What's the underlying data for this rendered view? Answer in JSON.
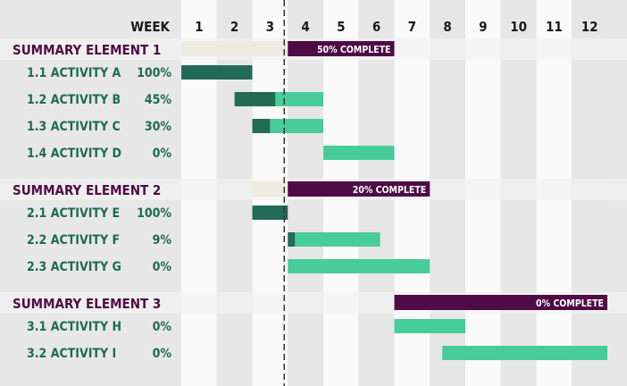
{
  "chart_data": {
    "type": "gantt",
    "header_label": "WEEK",
    "weeks": [
      "1",
      "2",
      "3",
      "4",
      "5",
      "6",
      "7",
      "8",
      "9",
      "10",
      "11",
      "12"
    ],
    "current_week": 3,
    "groups": [
      {
        "label": "SUMMARY ELEMENT 1",
        "elapsed": [
          1,
          3
        ],
        "remaining": [
          4,
          6
        ],
        "complete_label": "50% COMPLETE",
        "activities": [
          {
            "label": "1.1 ACTIVITY A",
            "percent": "100%",
            "start": 1,
            "end": 2,
            "done": 2
          },
          {
            "label": "1.2 ACTIVITY B",
            "percent": "45%",
            "start": 2.5,
            "end": 4,
            "done": 3.65
          },
          {
            "label": "1.3 ACTIVITY C",
            "percent": "30%",
            "start": 3,
            "end": 4,
            "done": 3.5
          },
          {
            "label": "1.4 ACTIVITY D",
            "percent": "0%",
            "start": 5,
            "end": 6,
            "done": 5
          }
        ]
      },
      {
        "label": "SUMMARY ELEMENT 2",
        "elapsed": [
          3,
          3
        ],
        "remaining": [
          4,
          7
        ],
        "complete_label": "20% COMPLETE",
        "activities": [
          {
            "label": "2.1 ACTIVITY E",
            "percent": "100%",
            "start": 3,
            "end": 3,
            "done": 3
          },
          {
            "label": "2.2 ACTIVITY F",
            "percent": "9%",
            "start": 4,
            "end": 5.6,
            "done": 4.2
          },
          {
            "label": "2.3 ACTIVITY G",
            "percent": "0%",
            "start": 4,
            "end": 7,
            "done": 4
          }
        ]
      },
      {
        "label": "SUMMARY ELEMENT 3",
        "elapsed": null,
        "remaining": [
          7,
          12
        ],
        "complete_label": "0% COMPLETE",
        "activities": [
          {
            "label": "3.1 ACTIVITY H",
            "percent": "0%",
            "start": 7,
            "end": 8,
            "done": 7
          },
          {
            "label": "3.2 ACTIVITY I",
            "percent": "0%",
            "start": 8.35,
            "end": 12,
            "done": 8.35
          }
        ]
      }
    ],
    "colors": {
      "summary": "#4f0b45",
      "elapsed": "#eeebe1",
      "done": "#226b54",
      "remaining": "#48cc99",
      "activity_text": "#1e6b52",
      "column_odd": "#fafafa",
      "column_even": "#e6e6e6",
      "band": "#f3f3f3"
    }
  }
}
